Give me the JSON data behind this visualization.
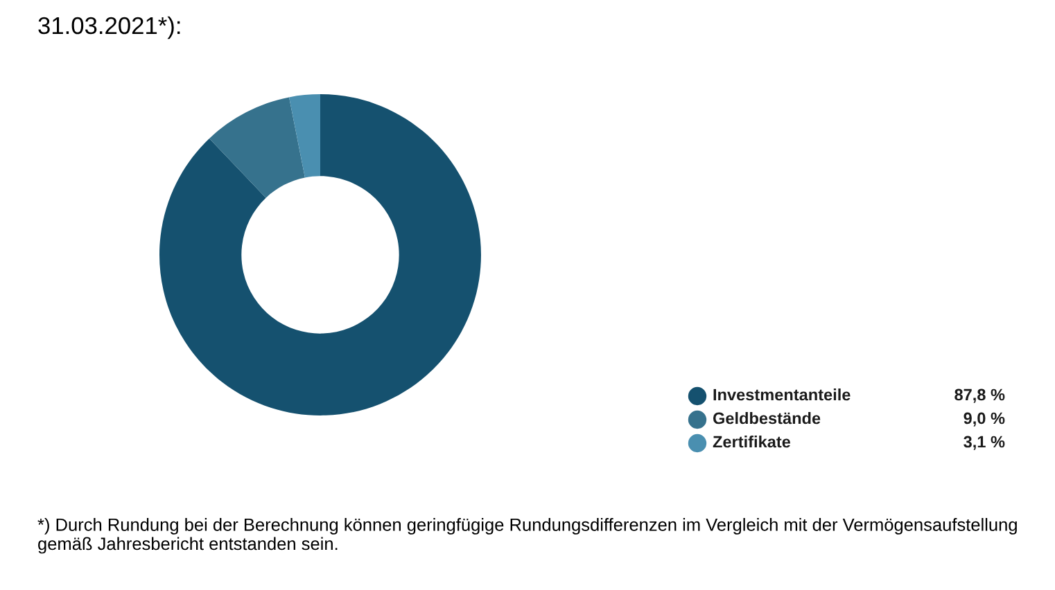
{
  "chart_data": {
    "type": "donut",
    "title": "31.03.2021*):",
    "categories": [
      "Investmentanteile",
      "Geldbestände",
      "Zertifikate"
    ],
    "values": [
      87.8,
      9.0,
      3.1
    ],
    "colors": [
      "#15516f",
      "#36728d",
      "#4a8fb0"
    ],
    "value_labels": [
      "87,8 %",
      "9,0 %",
      "3,1 %"
    ],
    "legend": "bottom right",
    "annotations": [
      "*) Durch Rundung bei der Berechnung können geringfügige Rundungsdifferenzen im Vergleich mit der Vermögensaufstellung gemäß Jahresbericht entstanden sein."
    ]
  }
}
